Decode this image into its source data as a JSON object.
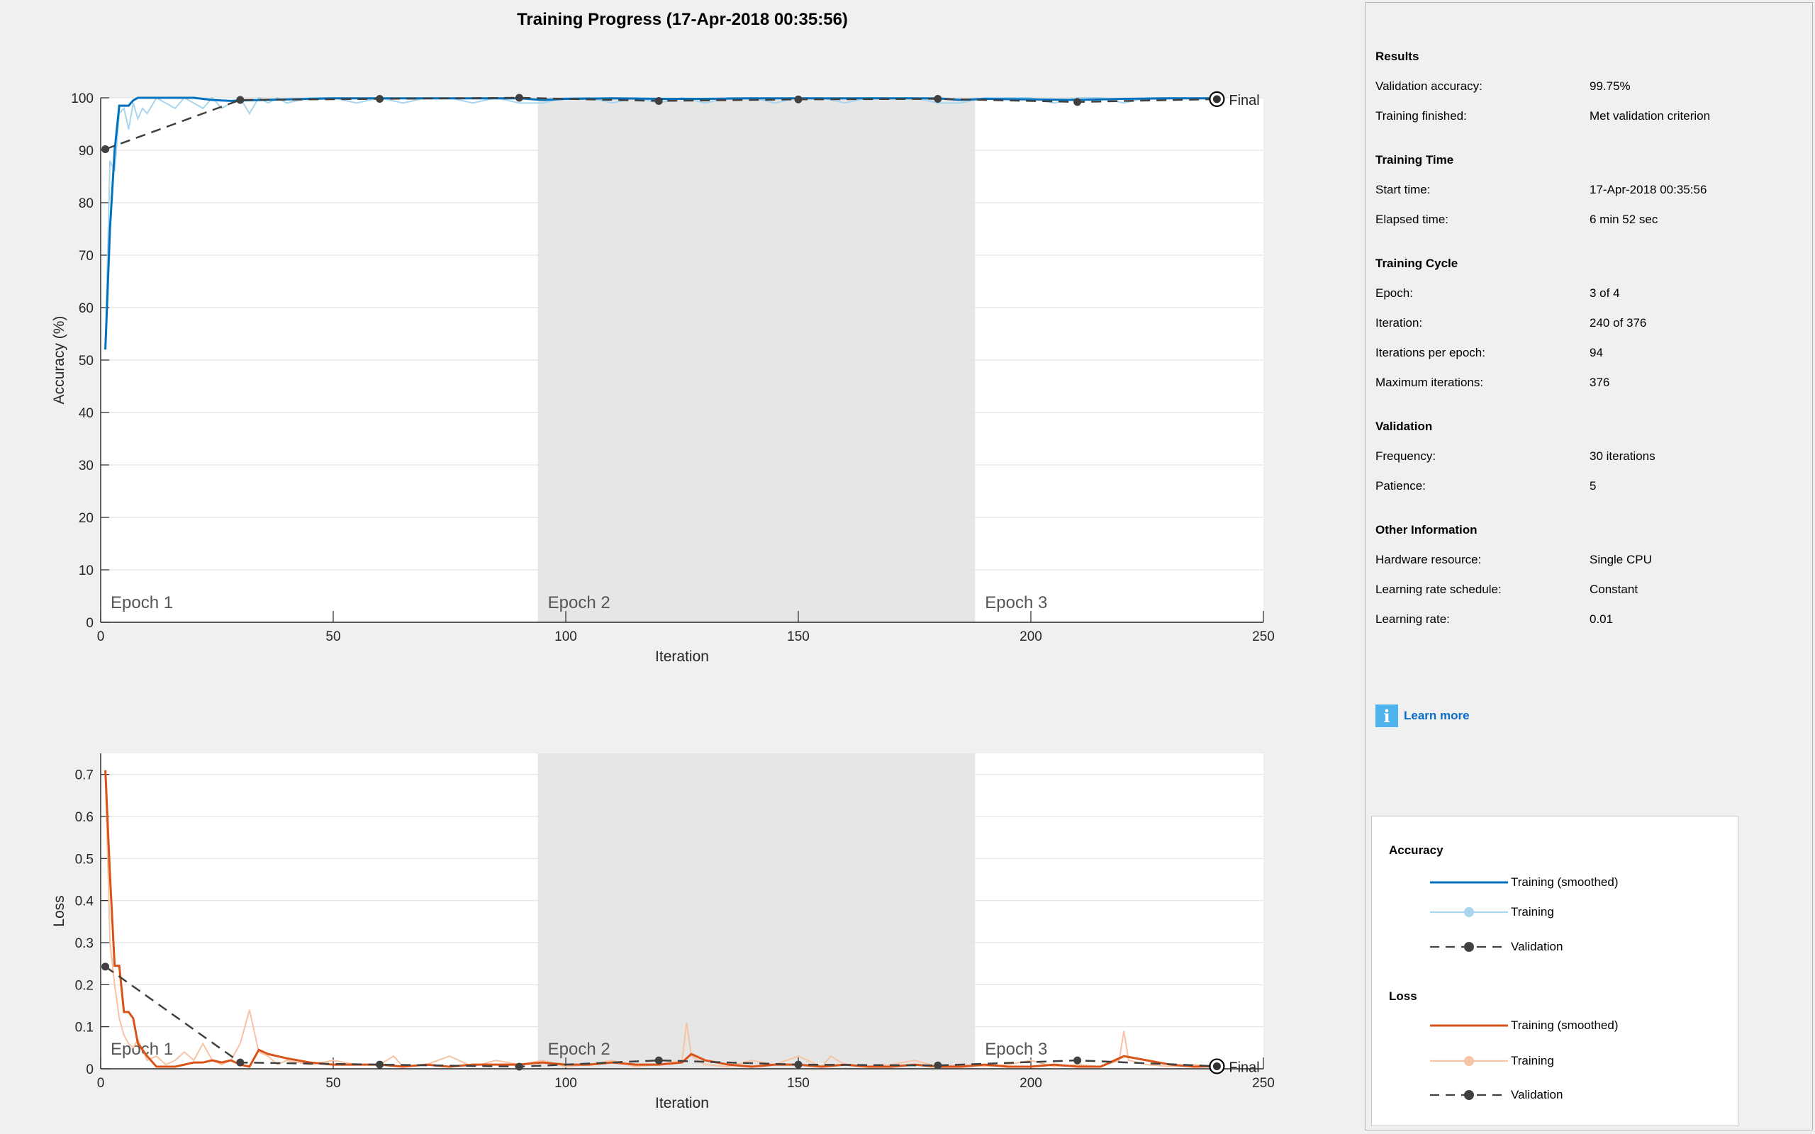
{
  "title": "Training Progress (17-Apr-2018 00:35:56)",
  "colors": {
    "accuracy_smoothed": "#0072bd",
    "accuracy_raw": "#a9d5ee",
    "loss_smoothed": "#d95319",
    "loss_raw": "#f6c3a4",
    "validation": "#404040",
    "epoch_shade": "#e6e6e6"
  },
  "chart_data": [
    {
      "type": "line",
      "name": "accuracy",
      "ylabel": "Accuracy (%)",
      "xlabel": "Iteration",
      "xlim": [
        0,
        250
      ],
      "ylim": [
        0,
        100
      ],
      "xticks": [
        0,
        50,
        100,
        150,
        200,
        250
      ],
      "yticks": [
        0,
        10,
        20,
        30,
        40,
        50,
        60,
        70,
        80,
        90,
        100
      ],
      "grid": true,
      "epochs": [
        {
          "label": "Epoch 1",
          "start": 0,
          "end": 94,
          "shaded": false
        },
        {
          "label": "Epoch 2",
          "start": 94,
          "end": 188,
          "shaded": true
        },
        {
          "label": "Epoch 3",
          "start": 188,
          "end": 250,
          "shaded": false
        }
      ],
      "final_label": "Final",
      "final_point": {
        "x": 240,
        "y": 99.75
      },
      "series": [
        {
          "name": "Training",
          "role": "raw",
          "x": [
            1,
            2,
            3,
            4,
            5,
            6,
            7,
            8,
            9,
            10,
            12,
            14,
            16,
            18,
            20,
            22,
            24,
            26,
            28,
            30,
            32,
            34,
            36,
            38,
            40,
            45,
            50,
            55,
            60,
            65,
            70,
            75,
            80,
            85,
            90,
            95,
            100,
            105,
            110,
            115,
            120,
            125,
            130,
            135,
            140,
            145,
            150,
            155,
            160,
            165,
            170,
            175,
            180,
            185,
            190,
            195,
            200,
            205,
            210,
            215,
            220,
            225,
            230,
            235,
            240
          ],
          "y": [
            52,
            88,
            86,
            97,
            98,
            94,
            99,
            96,
            98,
            97,
            100,
            99,
            98,
            100,
            99,
            98,
            100,
            98,
            99,
            100,
            97,
            100,
            99,
            100,
            99,
            100,
            100,
            99,
            100,
            99,
            100,
            100,
            99,
            100,
            99,
            99,
            100,
            100,
            99,
            100,
            99,
            100,
            99,
            100,
            100,
            99,
            100,
            100,
            99,
            100,
            100,
            100,
            99,
            99,
            100,
            100,
            100,
            99,
            100,
            100,
            99,
            100,
            100,
            100,
            100
          ]
        },
        {
          "name": "Training (smoothed)",
          "role": "smoothed",
          "x": [
            1,
            2,
            3,
            4,
            5,
            6,
            7,
            8,
            10,
            12,
            14,
            16,
            18,
            20,
            22,
            24,
            26,
            28,
            30,
            35,
            40,
            45,
            50,
            60,
            70,
            80,
            90,
            95,
            100,
            110,
            120,
            130,
            140,
            150,
            160,
            170,
            180,
            185,
            190,
            200,
            210,
            220,
            230,
            240
          ],
          "y": [
            52,
            75,
            90,
            98.5,
            98.5,
            98.5,
            99.5,
            100,
            100,
            100,
            100,
            100,
            100,
            100,
            99.8,
            99.6,
            99.5,
            99.4,
            99.5,
            99.6,
            99.7,
            99.8,
            99.9,
            99.9,
            99.9,
            99.9,
            99.9,
            99.6,
            99.8,
            99.9,
            99.8,
            99.8,
            99.9,
            99.9,
            99.9,
            99.9,
            99.9,
            99.6,
            99.8,
            99.7,
            99.6,
            99.8,
            99.9,
            99.9
          ]
        },
        {
          "name": "Validation",
          "role": "validation",
          "x": [
            1,
            30,
            60,
            90,
            120,
            150,
            180,
            210,
            240
          ],
          "y": [
            90.2,
            99.6,
            99.8,
            100,
            99.4,
            99.7,
            99.8,
            99.2,
            99.75
          ]
        }
      ]
    },
    {
      "type": "line",
      "name": "loss",
      "ylabel": "Loss",
      "xlabel": "Iteration",
      "xlim": [
        0,
        250
      ],
      "ylim": [
        0,
        0.75
      ],
      "xticks": [
        0,
        50,
        100,
        150,
        200,
        250
      ],
      "yticks": [
        0,
        0.1,
        0.2,
        0.3,
        0.4,
        0.5,
        0.6,
        0.7
      ],
      "grid": true,
      "epochs": [
        {
          "label": "Epoch 1",
          "start": 0,
          "end": 94,
          "shaded": false
        },
        {
          "label": "Epoch 2",
          "start": 94,
          "end": 188,
          "shaded": true
        },
        {
          "label": "Epoch 3",
          "start": 188,
          "end": 250,
          "shaded": false
        }
      ],
      "final_label": "Final",
      "final_point": {
        "x": 240,
        "y": 0.006
      },
      "series": [
        {
          "name": "Training",
          "role": "raw",
          "x": [
            1,
            2,
            3,
            4,
            5,
            6,
            7,
            8,
            10,
            12,
            14,
            16,
            18,
            20,
            22,
            24,
            26,
            28,
            30,
            31,
            32,
            34,
            36,
            38,
            40,
            45,
            50,
            55,
            60,
            63,
            65,
            70,
            75,
            80,
            85,
            90,
            95,
            100,
            105,
            110,
            115,
            120,
            125,
            126,
            127,
            130,
            135,
            140,
            145,
            150,
            155,
            157,
            160,
            165,
            170,
            175,
            180,
            185,
            190,
            195,
            200,
            205,
            210,
            215,
            219,
            220,
            221,
            225,
            230,
            235,
            240
          ],
          "y": [
            0.71,
            0.3,
            0.2,
            0.12,
            0.08,
            0.06,
            0.05,
            0.07,
            0.02,
            0.03,
            0.01,
            0.02,
            0.04,
            0.02,
            0.06,
            0.02,
            0.01,
            0.02,
            0.06,
            0.1,
            0.14,
            0.04,
            0.03,
            0.01,
            0.02,
            0.01,
            0.02,
            0.01,
            0.01,
            0.03,
            0.005,
            0.01,
            0.03,
            0.005,
            0.02,
            0.01,
            0.02,
            0.005,
            0.01,
            0.02,
            0.005,
            0.01,
            0.02,
            0.11,
            0.03,
            0.01,
            0.005,
            0.02,
            0.01,
            0.03,
            0.005,
            0.03,
            0.01,
            0.005,
            0.01,
            0.02,
            0.005,
            0.01,
            0.005,
            0.01,
            0.02,
            0.005,
            0.01,
            0.005,
            0.02,
            0.09,
            0.02,
            0.01,
            0.005,
            0.01,
            0.005
          ]
        },
        {
          "name": "Training (smoothed)",
          "role": "smoothed",
          "x": [
            1,
            2,
            3,
            4,
            5,
            6,
            7,
            8,
            10,
            12,
            14,
            16,
            18,
            20,
            22,
            24,
            26,
            28,
            30,
            32,
            34,
            36,
            38,
            40,
            45,
            50,
            55,
            60,
            65,
            70,
            75,
            80,
            85,
            90,
            95,
            100,
            105,
            110,
            115,
            120,
            125,
            127,
            130,
            135,
            140,
            145,
            150,
            155,
            160,
            165,
            170,
            175,
            180,
            185,
            190,
            195,
            200,
            205,
            210,
            215,
            220,
            225,
            230,
            235,
            240
          ],
          "y": [
            0.71,
            0.46,
            0.245,
            0.245,
            0.135,
            0.135,
            0.12,
            0.06,
            0.03,
            0.005,
            0.005,
            0.005,
            0.01,
            0.015,
            0.015,
            0.02,
            0.015,
            0.02,
            0.01,
            0.005,
            0.045,
            0.035,
            0.03,
            0.025,
            0.015,
            0.01,
            0.01,
            0.01,
            0.005,
            0.01,
            0.005,
            0.01,
            0.01,
            0.01,
            0.015,
            0.01,
            0.01,
            0.015,
            0.01,
            0.01,
            0.015,
            0.035,
            0.02,
            0.01,
            0.005,
            0.01,
            0.01,
            0.005,
            0.01,
            0.005,
            0.005,
            0.01,
            0.005,
            0.005,
            0.01,
            0.005,
            0.005,
            0.01,
            0.005,
            0.005,
            0.03,
            0.02,
            0.01,
            0.005,
            0.006
          ]
        },
        {
          "name": "Validation",
          "role": "validation",
          "x": [
            1,
            30,
            60,
            90,
            120,
            150,
            180,
            210,
            240
          ],
          "y": [
            0.243,
            0.015,
            0.01,
            0.005,
            0.02,
            0.01,
            0.008,
            0.02,
            0.006
          ]
        }
      ]
    }
  ],
  "panel": {
    "sections": [
      {
        "title": "Results",
        "rows": [
          {
            "label": "Validation accuracy:",
            "value": "99.75%"
          },
          {
            "label": "Training finished:",
            "value": "Met validation criterion"
          }
        ]
      },
      {
        "title": "Training Time",
        "rows": [
          {
            "label": "Start time:",
            "value": "17-Apr-2018 00:35:56"
          },
          {
            "label": "Elapsed time:",
            "value": "6 min 52 sec"
          }
        ]
      },
      {
        "title": "Training Cycle",
        "rows": [
          {
            "label": "Epoch:",
            "value": "3 of 4"
          },
          {
            "label": "Iteration:",
            "value": "240 of 376"
          },
          {
            "label": "Iterations per epoch:",
            "value": "94"
          },
          {
            "label": "Maximum iterations:",
            "value": "376"
          }
        ]
      },
      {
        "title": "Validation",
        "rows": [
          {
            "label": "Frequency:",
            "value": "30 iterations"
          },
          {
            "label": "Patience:",
            "value": "5"
          }
        ]
      },
      {
        "title": "Other Information",
        "rows": [
          {
            "label": "Hardware resource:",
            "value": "Single CPU"
          },
          {
            "label": "Learning rate schedule:",
            "value": "Constant"
          },
          {
            "label": "Learning rate:",
            "value": "0.01"
          }
        ]
      }
    ],
    "learn_more": {
      "icon": "info-icon",
      "label": "Learn more"
    }
  },
  "legend": {
    "groups": [
      {
        "title": "Accuracy",
        "items": [
          {
            "label": "Training (smoothed)",
            "style": "smoothed",
            "color": "#0072bd"
          },
          {
            "label": "Training",
            "style": "raw",
            "color": "#a9d5ee"
          },
          {
            "label": "Validation",
            "style": "validation",
            "color": "#404040"
          }
        ]
      },
      {
        "title": "Loss",
        "items": [
          {
            "label": "Training (smoothed)",
            "style": "smoothed",
            "color": "#d95319"
          },
          {
            "label": "Training",
            "style": "raw",
            "color": "#f6c3a4"
          },
          {
            "label": "Validation",
            "style": "validation",
            "color": "#404040"
          }
        ]
      }
    ]
  }
}
